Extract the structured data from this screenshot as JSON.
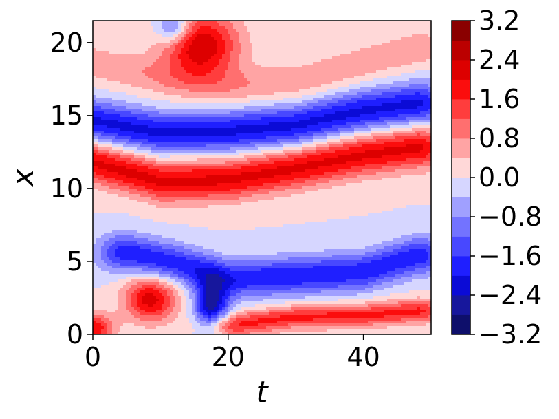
{
  "chart_data": {
    "type": "heatmap",
    "subtype": "filled-contour",
    "title": "",
    "xlabel": "t",
    "ylabel": "x",
    "xlim": [
      0,
      50
    ],
    "ylim": [
      0,
      21.5
    ],
    "xticks": [
      0,
      20,
      40
    ],
    "xtick_labels": [
      "0",
      "20",
      "40"
    ],
    "yticks": [
      0,
      5,
      10,
      15,
      20
    ],
    "ytick_labels": [
      "0",
      "5",
      "10",
      "15",
      "20"
    ],
    "colormap": "seismic",
    "colorbar": {
      "range": [
        -3.2,
        3.2
      ],
      "levels": [
        -3.2,
        -2.8,
        -2.4,
        -2.0,
        -1.6,
        -1.2,
        -0.8,
        -0.4,
        0.0,
        0.4,
        0.8,
        1.2,
        1.6,
        2.0,
        2.4,
        2.8,
        3.2
      ],
      "tick_values": [
        3.2,
        2.4,
        1.6,
        0.8,
        0.0,
        -0.8,
        -1.6,
        -2.4,
        -3.2
      ],
      "tick_labels": [
        "3.2",
        "2.4",
        "1.6",
        "0.8",
        "0.0",
        "−0.8",
        "−1.6",
        "−2.4",
        "−3.2"
      ],
      "band_colors": [
        "#0e0f6b",
        "#17179c",
        "#0b0bd6",
        "#1f1fff",
        "#4848ff",
        "#7373ff",
        "#a0a0ff",
        "#d6d6ff",
        "#ffd8d8",
        "#ffa4a4",
        "#ff6f6f",
        "#ff3d3d",
        "#fb0d0d",
        "#dd0000",
        "#bb0000",
        "#8a0000"
      ]
    },
    "field_structures": [
      {
        "kind": "band",
        "sign": 1,
        "amp": 2.1,
        "path": [
          [
            0,
            11.8
          ],
          [
            10,
            10.5
          ],
          [
            20,
            10.6
          ],
          [
            30,
            11.4
          ],
          [
            40,
            12.3
          ],
          [
            48,
            12.8
          ]
        ],
        "width": 1.4
      },
      {
        "kind": "band",
        "sign": -1,
        "amp": 2.1,
        "path": [
          [
            0,
            14.6
          ],
          [
            10,
            13.8
          ],
          [
            20,
            13.9
          ],
          [
            30,
            14.3
          ],
          [
            40,
            15.3
          ],
          [
            48,
            15.8
          ]
        ],
        "width": 1.4
      },
      {
        "kind": "band",
        "sign": 1,
        "amp": 0.7,
        "path": [
          [
            0,
            18.6
          ],
          [
            10,
            17.6
          ],
          [
            20,
            17.0
          ],
          [
            30,
            17.3
          ],
          [
            40,
            18.6
          ],
          [
            48,
            19.6
          ]
        ],
        "width": 1.3
      },
      {
        "kind": "band",
        "sign": -1,
        "amp": 1.9,
        "path": [
          [
            5,
            5.6
          ],
          [
            12,
            4.9
          ],
          [
            20,
            3.8
          ],
          [
            30,
            4.0
          ],
          [
            40,
            4.3
          ],
          [
            48,
            5.4
          ]
        ],
        "width": 1.3
      },
      {
        "kind": "band",
        "sign": 1,
        "amp": 1.7,
        "path": [
          [
            20,
            0.6
          ],
          [
            30,
            1.2
          ],
          [
            40,
            1.3
          ],
          [
            48,
            1.6
          ]
        ],
        "width": 0.8
      },
      {
        "kind": "blob",
        "sign": 1,
        "amp": 2.2,
        "center": [
          8.5,
          2.4
        ],
        "radius": [
          3.8,
          1.5
        ]
      },
      {
        "kind": "blob",
        "sign": -1,
        "amp": 2.6,
        "center": [
          17.5,
          1.9
        ],
        "radius": [
          2.4,
          1.8
        ]
      },
      {
        "kind": "blob",
        "sign": 1,
        "amp": 2.4,
        "center": [
          16,
          19.8
        ],
        "radius": [
          5.5,
          2.2
        ]
      },
      {
        "kind": "blob",
        "sign": -1,
        "amp": 1.6,
        "center": [
          12,
          21.0
        ],
        "radius": [
          2.5,
          1.1
        ]
      },
      {
        "kind": "blob",
        "sign": 1,
        "amp": 2.0,
        "center": [
          0,
          0.4
        ],
        "radius": [
          3,
          1
        ]
      }
    ]
  }
}
